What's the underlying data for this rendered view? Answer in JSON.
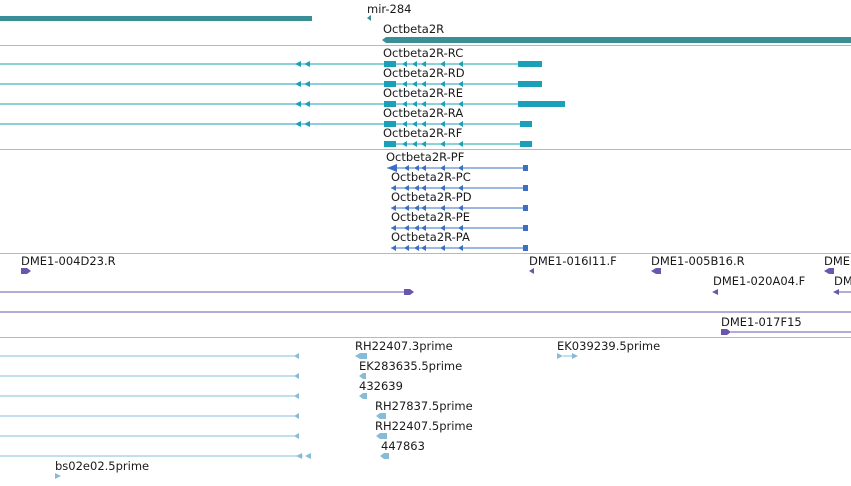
{
  "colors": {
    "gene": "#3a8f96",
    "transcript": "#1aa0b8",
    "protein": "#3a6fc4",
    "clone": "#6a56ad",
    "est": "#86bcd8",
    "separator": "#b8b8b8"
  },
  "tracks": {
    "gene": {
      "items": [
        {
          "label": "mir-284"
        },
        {
          "label": "Octbeta2R"
        }
      ]
    },
    "transcripts": {
      "items": [
        {
          "label": "Octbeta2R-RC"
        },
        {
          "label": "Octbeta2R-RD"
        },
        {
          "label": "Octbeta2R-RE"
        },
        {
          "label": "Octbeta2R-RA"
        },
        {
          "label": "Octbeta2R-RF"
        }
      ]
    },
    "proteins": {
      "items": [
        {
          "label": "Octbeta2R-PF"
        },
        {
          "label": "Octbeta2R-PC"
        },
        {
          "label": "Octbeta2R-PD"
        },
        {
          "label": "Octbeta2R-PE"
        },
        {
          "label": "Octbeta2R-PA"
        }
      ]
    },
    "clones": {
      "items": [
        {
          "label": "DME1-004D23.R"
        },
        {
          "label": "DME1-016I11.F"
        },
        {
          "label": "DME1-005B16.R"
        },
        {
          "label": "DME1-020A04.F"
        },
        {
          "label": "DME1-017F15"
        },
        {
          "label": "DME"
        },
        {
          "label": "DM"
        }
      ]
    },
    "ests": {
      "items": [
        {
          "label": "RH22407.3prime"
        },
        {
          "label": "EK039239.5prime"
        },
        {
          "label": "EK283635.5prime"
        },
        {
          "label": "432639"
        },
        {
          "label": "RH27837.5prime"
        },
        {
          "label": "RH22407.5prime"
        },
        {
          "label": "447863"
        },
        {
          "label": "bs02e02.5prime"
        }
      ]
    }
  }
}
